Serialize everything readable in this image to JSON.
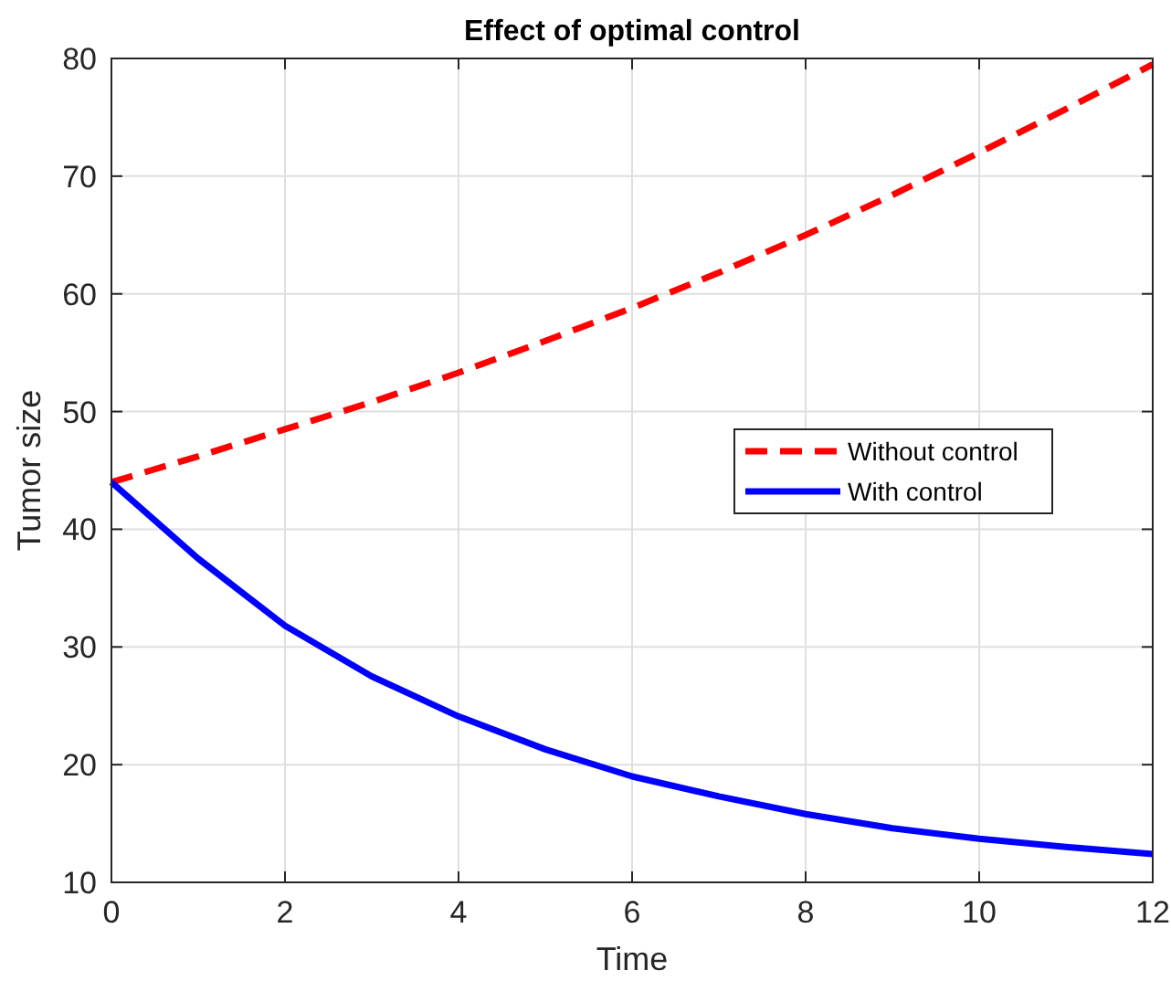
{
  "chart_data": {
    "type": "line",
    "title": "Effect of optimal control",
    "xlabel": "Time",
    "ylabel": "Tumor size",
    "x": [
      0,
      1,
      2,
      3,
      4,
      5,
      6,
      7,
      8,
      9,
      10,
      11,
      12
    ],
    "series": [
      {
        "name": "Without control",
        "color": "#ff0000",
        "line_style": "dashed",
        "values": [
          44,
          46.2,
          48.5,
          50.8,
          53.3,
          56,
          58.8,
          61.8,
          65,
          68.4,
          72,
          75.7,
          79.5
        ]
      },
      {
        "name": "With control",
        "color": "#0000ff",
        "line_style": "solid",
        "values": [
          44,
          37.5,
          31.8,
          27.5,
          24.1,
          21.3,
          19,
          17.3,
          15.8,
          14.6,
          13.7,
          13,
          12.4
        ]
      }
    ],
    "xlim": [
      0,
      12
    ],
    "xticks": [
      0,
      2,
      4,
      6,
      8,
      10,
      12
    ],
    "ylim": [
      10,
      80
    ],
    "yticks": [
      10,
      20,
      30,
      40,
      50,
      60,
      70,
      80
    ],
    "grid": true,
    "legend": "right",
    "marker": "none"
  }
}
